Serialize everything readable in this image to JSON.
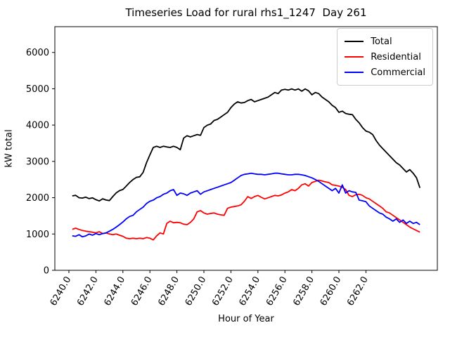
{
  "figure": {
    "title": "Timeseries Load for rural rhs1_1247  Day 261",
    "background": "#ffffff"
  },
  "axes": {
    "xlabel": "Hour of Year",
    "ylabel": "kW total",
    "spine_color": "#000000"
  },
  "chart_data": {
    "type": "line",
    "title": "Timeseries Load for rural rhs1_1247  Day 261",
    "xlabel": "Hour of Year",
    "ylabel": "kW total",
    "grid": false,
    "legend_position": "upper right",
    "xlim": [
      6238.96,
      6267.29
    ],
    "ylim": [
      0,
      6710
    ],
    "xticks": {
      "values": [
        6240,
        6242,
        6244,
        6246,
        6248,
        6250,
        6252,
        6254,
        6256,
        6258,
        6260,
        6262
      ],
      "labels": [
        "6240.0",
        "6242.0",
        "6244.0",
        "6246.0",
        "6248.0",
        "6250.0",
        "6252.0",
        "6254.0",
        "6256.0",
        "6258.0",
        "6260.0",
        "6262.0"
      ],
      "rotation": -60
    },
    "yticks": {
      "values": [
        0,
        1000,
        2000,
        3000,
        4000,
        5000,
        6000
      ],
      "labels": [
        "0",
        "1000",
        "2000",
        "3000",
        "4000",
        "5000",
        "6000"
      ]
    },
    "x": [
      6240.25,
      6240.5,
      6240.75,
      6241.0,
      6241.25,
      6241.5,
      6241.75,
      6242.0,
      6242.25,
      6242.5,
      6242.75,
      6243.0,
      6243.25,
      6243.5,
      6243.75,
      6244.0,
      6244.25,
      6244.5,
      6244.75,
      6245.0,
      6245.25,
      6245.5,
      6245.75,
      6246.0,
      6246.25,
      6246.5,
      6246.75,
      6247.0,
      6247.25,
      6247.5,
      6247.75,
      6248.0,
      6248.25,
      6248.5,
      6248.75,
      6249.0,
      6249.25,
      6249.5,
      6249.75,
      6250.0,
      6250.25,
      6250.5,
      6250.75,
      6251.0,
      6251.25,
      6251.5,
      6251.75,
      6252.0,
      6252.25,
      6252.5,
      6252.75,
      6253.0,
      6253.25,
      6253.5,
      6253.75,
      6254.0,
      6254.25,
      6254.5,
      6254.75,
      6255.0,
      6255.25,
      6255.5,
      6255.75,
      6256.0,
      6256.25,
      6256.5,
      6256.75,
      6257.0,
      6257.25,
      6257.5,
      6257.75,
      6258.0,
      6258.25,
      6258.5,
      6258.75,
      6259.0,
      6259.25,
      6259.5,
      6259.75,
      6260.0,
      6260.25,
      6260.5,
      6260.75,
      6261.0,
      6261.25,
      6261.5,
      6261.75,
      6262.0,
      6262.25,
      6262.5,
      6262.75,
      6263.0,
      6263.25,
      6263.5,
      6263.75,
      6264.0,
      6264.25,
      6264.5,
      6264.75,
      6265.0,
      6265.25,
      6265.5,
      6265.75,
      6266.0
    ],
    "series": [
      {
        "name": "Total",
        "color": "#000000",
        "values": [
          2050,
          2065,
          2000,
          1990,
          2015,
          1975,
          1995,
          1945,
          1910,
          1970,
          1935,
          1920,
          2030,
          2130,
          2195,
          2225,
          2320,
          2420,
          2500,
          2560,
          2575,
          2700,
          2965,
          3180,
          3384,
          3417,
          3384,
          3417,
          3397,
          3384,
          3417,
          3384,
          3320,
          3642,
          3707,
          3675,
          3707,
          3739,
          3719,
          3932,
          3997,
          4029,
          4126,
          4158,
          4222,
          4287,
          4351,
          4480,
          4577,
          4641,
          4609,
          4622,
          4673,
          4706,
          4641,
          4673,
          4706,
          4738,
          4770,
          4835,
          4899,
          4867,
          4964,
          4983,
          4964,
          4996,
          4964,
          4996,
          4932,
          4996,
          4944,
          4835,
          4899,
          4867,
          4770,
          4706,
          4641,
          4545,
          4480,
          4351,
          4383,
          4319,
          4299,
          4287,
          4158,
          4061,
          3932,
          3836,
          3803,
          3739,
          3578,
          3449,
          3352,
          3255,
          3158,
          3062,
          2965,
          2901,
          2804,
          2707,
          2772,
          2675,
          2546,
          2270
        ]
      },
      {
        "name": "Residential",
        "color": "#ff0000",
        "values": [
          1130,
          1160,
          1125,
          1096,
          1077,
          1064,
          1050,
          1031,
          1064,
          1012,
          1031,
          999,
          980,
          999,
          967,
          935,
          884,
          870,
          884,
          870,
          884,
          870,
          903,
          884,
          838,
          950,
          1031,
          999,
          1290,
          1354,
          1309,
          1321,
          1309,
          1270,
          1257,
          1321,
          1418,
          1611,
          1644,
          1579,
          1547,
          1566,
          1579,
          1547,
          1528,
          1515,
          1708,
          1740,
          1756,
          1773,
          1805,
          1902,
          2030,
          1979,
          2031,
          2063,
          2011,
          1966,
          1998,
          2031,
          2063,
          2050,
          2076,
          2127,
          2160,
          2224,
          2192,
          2256,
          2353,
          2385,
          2321,
          2417,
          2450,
          2482,
          2462,
          2437,
          2417,
          2353,
          2340,
          2321,
          2288,
          2224,
          2063,
          2031,
          2082,
          2095,
          2063,
          1998,
          1966,
          1901,
          1837,
          1773,
          1708,
          1611,
          1579,
          1515,
          1450,
          1386,
          1321,
          1257,
          1192,
          1141,
          1096,
          1050
        ]
      },
      {
        "name": "Commercial",
        "color": "#0000ff",
        "values": [
          950,
          935,
          980,
          922,
          948,
          999,
          967,
          1012,
          980,
          1012,
          1031,
          1077,
          1128,
          1190,
          1257,
          1330,
          1418,
          1483,
          1515,
          1611,
          1676,
          1740,
          1838,
          1902,
          1934,
          1998,
          2031,
          2095,
          2127,
          2192,
          2224,
          2063,
          2127,
          2108,
          2063,
          2127,
          2160,
          2192,
          2095,
          2160,
          2190,
          2224,
          2256,
          2288,
          2321,
          2353,
          2385,
          2417,
          2481,
          2546,
          2611,
          2643,
          2656,
          2675,
          2656,
          2643,
          2643,
          2630,
          2643,
          2656,
          2675,
          2675,
          2656,
          2643,
          2630,
          2630,
          2643,
          2643,
          2630,
          2611,
          2578,
          2546,
          2500,
          2450,
          2385,
          2321,
          2256,
          2192,
          2256,
          2127,
          2353,
          2127,
          2192,
          2160,
          2147,
          1934,
          1915,
          1889,
          1773,
          1708,
          1644,
          1579,
          1547,
          1464,
          1418,
          1354,
          1418,
          1321,
          1386,
          1289,
          1354,
          1289,
          1321,
          1257
        ]
      }
    ]
  }
}
